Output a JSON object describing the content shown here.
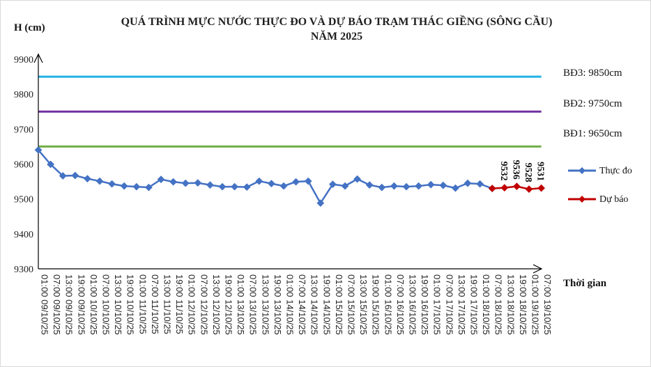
{
  "chart_data": {
    "type": "line",
    "title_line1": "QUÁ TRÌNH MỰC NƯỚC THỰC ĐO VÀ DỰ BÁO TRẠM THÁC GIỀNG (SÔNG CẦU)",
    "title_line2": "NĂM 2025",
    "ylabel": "H (cm)",
    "xlabel": "Thời gian",
    "ylim": [
      9300,
      9900
    ],
    "yticks": [
      9300,
      9400,
      9500,
      9600,
      9700,
      9800,
      9900
    ],
    "grid": false,
    "legend_position": "right",
    "x": [
      "01:00 09/10/25",
      "07:00 09/10/25",
      "13:00 09/10/25",
      "19:00 09/10/25",
      "01:00 10/10/25",
      "07:00 10/10/25",
      "13:00 10/10/25",
      "19:00 10/10/25",
      "01:00 11/10/25",
      "07:00 11/10/25",
      "13:00 11/10/25",
      "19:00 11/10/25",
      "01:00 12/10/25",
      "07:00 12/10/25",
      "13:00 12/10/25",
      "19:00 12/10/25",
      "01:00 13/10/25",
      "07:00 13/10/25",
      "13:00 13/10/25",
      "19:00 13/10/25",
      "01:00 14/10/25",
      "07:00 14/10/25",
      "13:00 14/10/25",
      "19:00 14/10/25",
      "01:00 15/10/25",
      "07:00 15/10/25",
      "13:00 15/10/25",
      "19:00 15/10/25",
      "01:00 16/10/25",
      "07:00 16/10/25",
      "13:00 16/10/25",
      "19:00 16/10/25",
      "01:00 17/10/25",
      "07:00 17/10/25",
      "13:00 17/10/25",
      "19:00 17/10/25",
      "01:00 18/10/25",
      "07:00 18/10/25",
      "13:00 18/10/25",
      "19:00 18/10/25",
      "01:00 19/10/25",
      "07:00 19/10/25"
    ],
    "series": [
      {
        "name": "Thực đo",
        "color": "#4472c4",
        "values": [
          9640,
          9599,
          9566,
          9567,
          9558,
          9551,
          9543,
          9537,
          9535,
          9533,
          9556,
          9549,
          9545,
          9546,
          9540,
          9535,
          9535,
          9534,
          9551,
          9544,
          9537,
          9549,
          9551,
          9488,
          9542,
          9537,
          9557,
          9540,
          9533,
          9537,
          9535,
          9537,
          9541,
          9539,
          9531,
          9545,
          9543,
          9530,
          null,
          null,
          null,
          null
        ]
      },
      {
        "name": "Dự báo",
        "color": "#c00000",
        "values": [
          null,
          null,
          null,
          null,
          null,
          null,
          null,
          null,
          null,
          null,
          null,
          null,
          null,
          null,
          null,
          null,
          null,
          null,
          null,
          null,
          null,
          null,
          null,
          null,
          null,
          null,
          null,
          null,
          null,
          null,
          null,
          null,
          null,
          null,
          null,
          null,
          null,
          9530,
          9532,
          9536,
          9528,
          9531
        ]
      }
    ],
    "data_labels": [
      {
        "text": "9532",
        "index": 38
      },
      {
        "text": "9536",
        "index": 39
      },
      {
        "text": "9528",
        "index": 40
      },
      {
        "text": "9531",
        "index": 41
      }
    ],
    "thresholds": [
      {
        "label": "BĐ3: 9850cm",
        "value": 9850,
        "color": "#1fb1e6"
      },
      {
        "label": "BĐ2: 9750cm",
        "value": 9750,
        "color": "#7030a0"
      },
      {
        "label": "BĐ1: 9650cm",
        "value": 9650,
        "color": "#70ad47"
      }
    ]
  }
}
